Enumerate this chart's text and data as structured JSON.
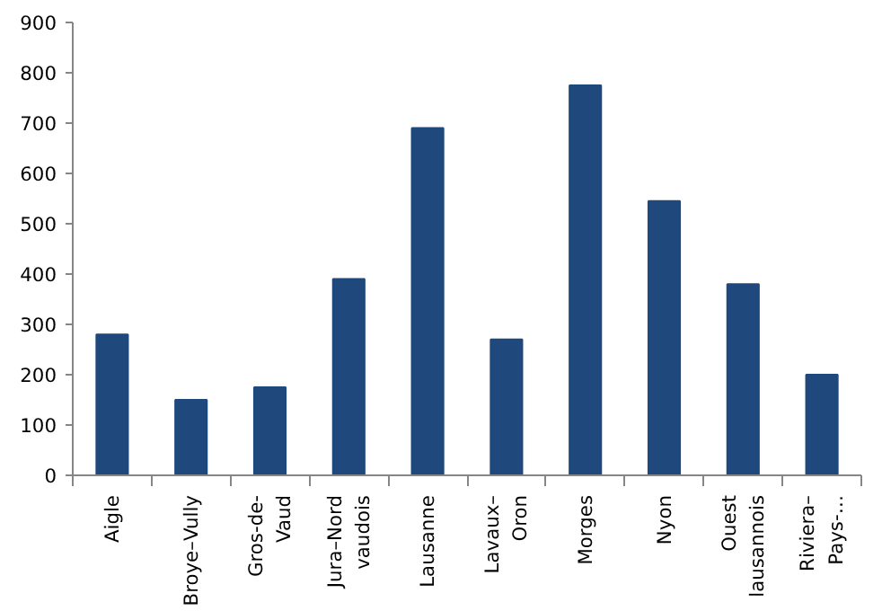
{
  "chart_data": {
    "type": "bar",
    "categories": [
      "Aigle",
      "Broye–Vully",
      "Gros-de-\nVaud",
      "Jura–Nord\nvaudois",
      "Lausanne",
      "Lavaux–\nOron",
      "Morges",
      "Nyon",
      "Ouest\nlausannois",
      "Riviera–\nPays-…"
    ],
    "values": [
      280,
      150,
      175,
      390,
      690,
      270,
      775,
      545,
      380,
      200
    ],
    "color": "#1f487c",
    "ylim": [
      0,
      900
    ],
    "yticks": [
      0,
      100,
      200,
      300,
      400,
      500,
      600,
      700,
      800,
      900
    ],
    "grid": false
  }
}
